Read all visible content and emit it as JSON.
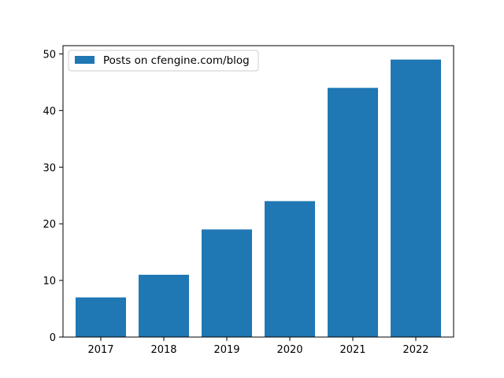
{
  "chart_data": {
    "type": "bar",
    "categories": [
      "2017",
      "2018",
      "2019",
      "2020",
      "2021",
      "2022"
    ],
    "series": [
      {
        "name": "Posts on cfengine.com/blog",
        "values": [
          7,
          11,
          19,
          24,
          44,
          49
        ],
        "color": "#1f77b4"
      }
    ],
    "ylim": [
      0,
      51.45
    ],
    "yticks": [
      0,
      10,
      20,
      30,
      40,
      50
    ],
    "title": "",
    "xlabel": "",
    "ylabel": "",
    "grid": false,
    "legend": {
      "position": "top-left"
    }
  }
}
